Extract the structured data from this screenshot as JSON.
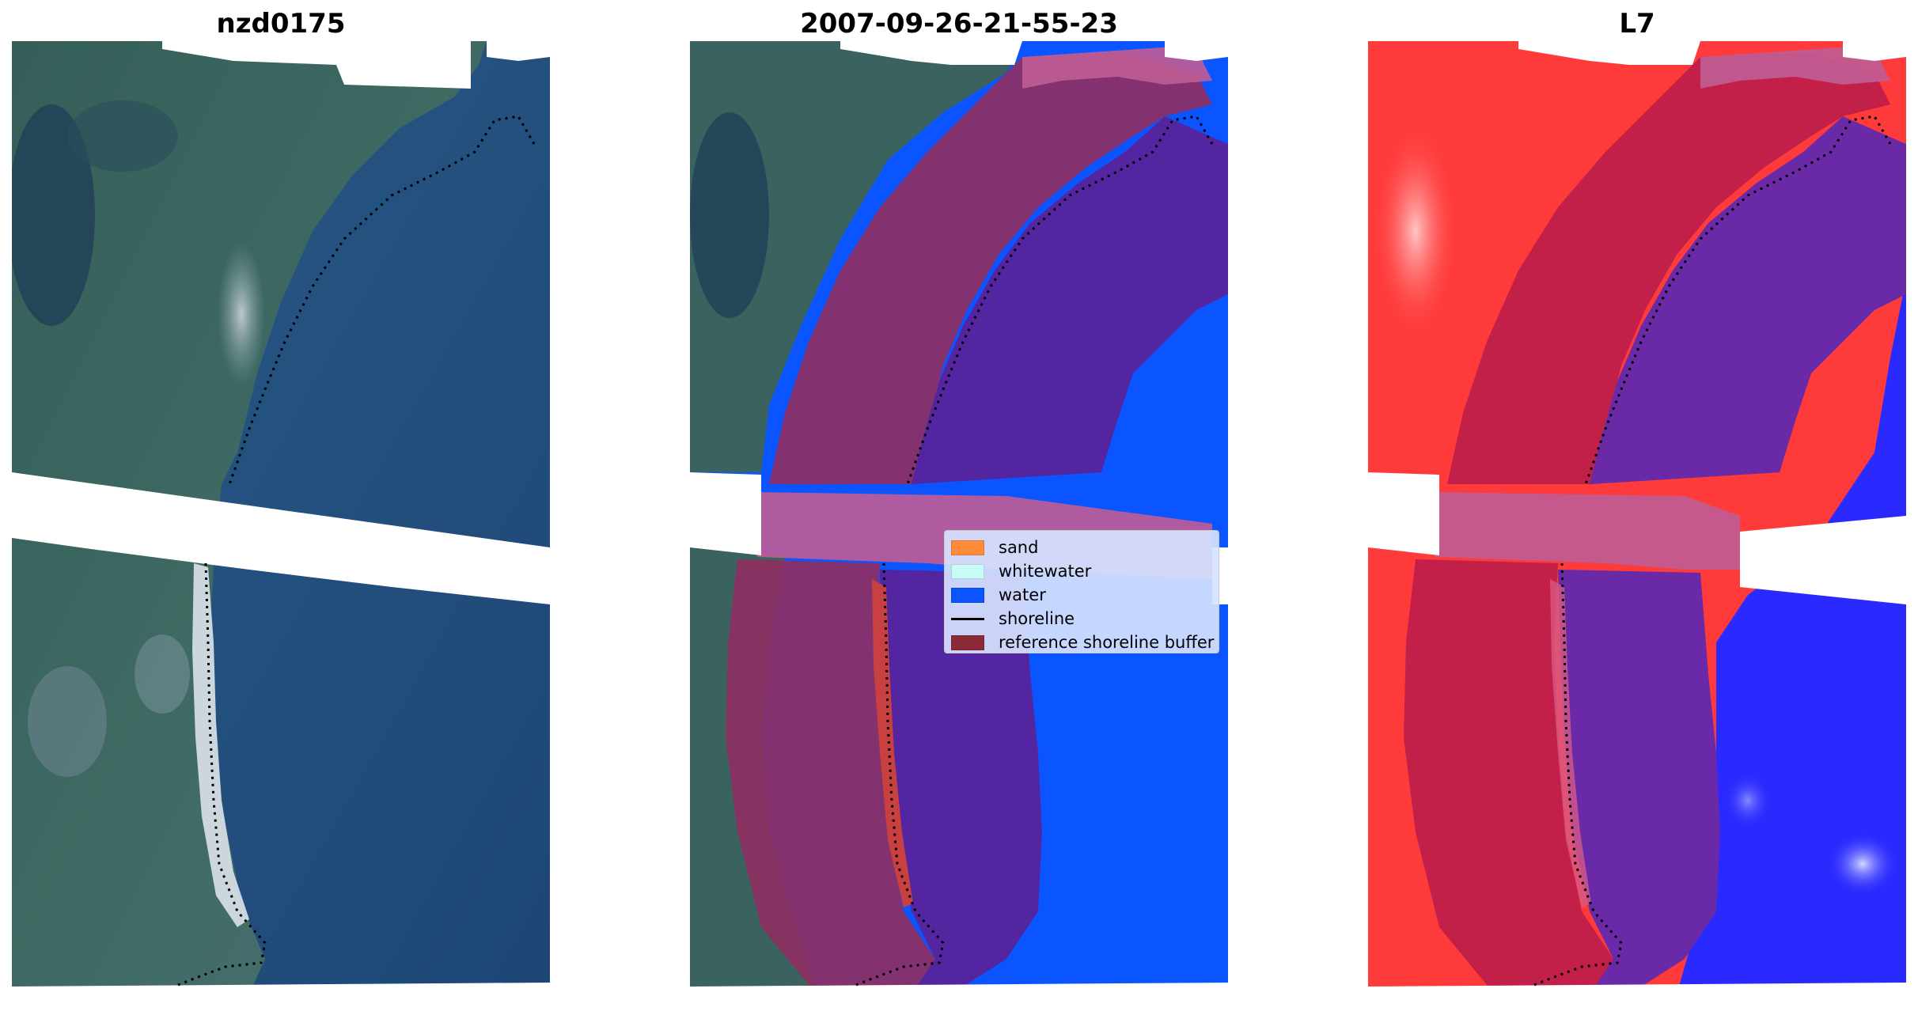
{
  "panels": {
    "rgb": {
      "title": "nzd0175"
    },
    "classified": {
      "title": "2007-09-26-21-55-23"
    },
    "index": {
      "title": "L7"
    }
  },
  "legend": {
    "items": [
      {
        "label": "sand",
        "type": "patch",
        "color": "#ff8c3a"
      },
      {
        "label": "whitewater",
        "type": "patch",
        "color": "#c8fbf6"
      },
      {
        "label": "water",
        "type": "patch",
        "color": "#0a55ff"
      },
      {
        "label": "shoreline",
        "type": "line",
        "color": "#000000"
      },
      {
        "label": "reference shoreline buffer",
        "type": "patch",
        "color": "#8b2a37"
      }
    ]
  },
  "colors": {
    "sea": "#214d80",
    "land": "#315a52",
    "water_class": "#0a55ff",
    "buffer_overlay": "#9b2f73",
    "water_in_buffer": "#4e22a0",
    "index_land": "#ff3a3a",
    "index_water": "#2a2aff",
    "nodata": "#ffffff"
  }
}
